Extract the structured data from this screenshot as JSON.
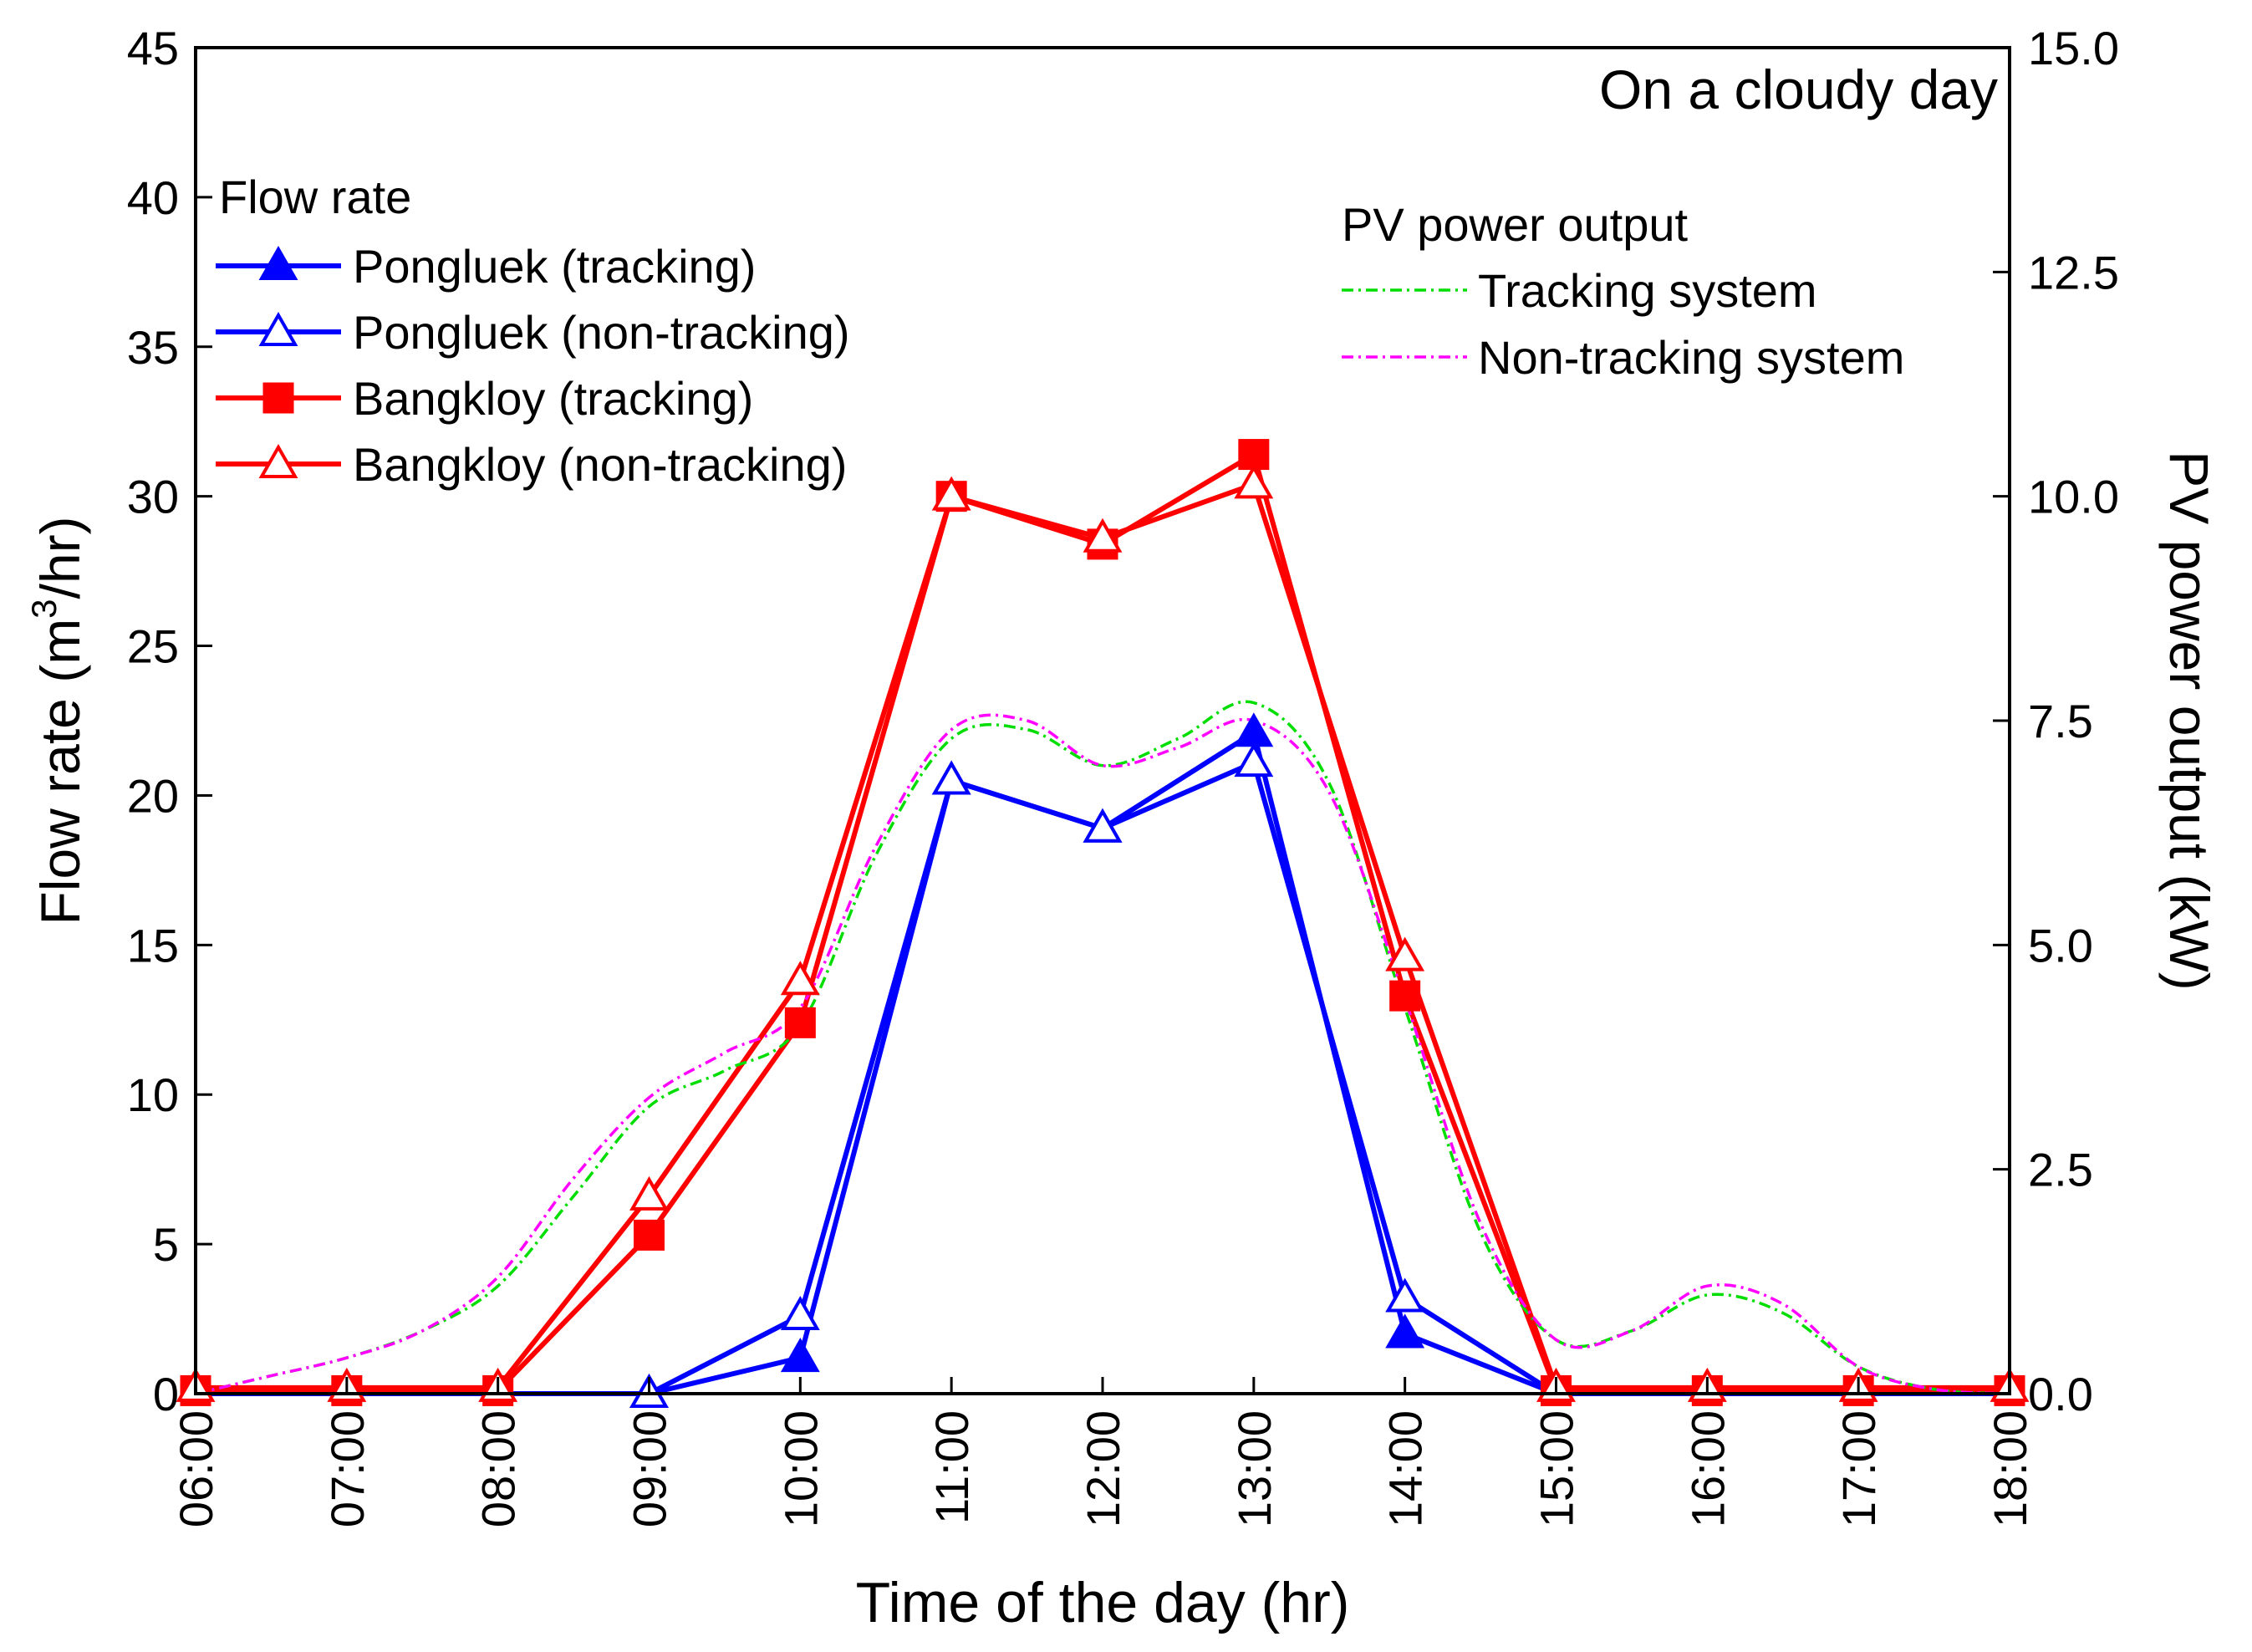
{
  "chart_data": {
    "type": "line",
    "title": "On a cloudy day",
    "xlabel": "Time of the day (hr)",
    "ylabel_left_main": "Flow rate (m",
    "ylabel_left_sup": "3",
    "ylabel_left_tail": "/hr)",
    "ylabel_right": "PV power output (kW)",
    "x_categories": [
      "06:00",
      "07:00",
      "08:00",
      "09:00",
      "10:00",
      "11:00",
      "12:00",
      "13:00",
      "14:00",
      "15:00",
      "16:00",
      "17:00",
      "18:00"
    ],
    "y_left_range": [
      0,
      45
    ],
    "y_left_ticks": [
      "0",
      "5",
      "10",
      "15",
      "20",
      "25",
      "30",
      "35",
      "40",
      "45"
    ],
    "y_right_range": [
      0,
      15
    ],
    "y_right_ticks": [
      "0.0",
      "2.5",
      "5.0",
      "7.5",
      "10.0",
      "12.5",
      "15.0"
    ],
    "legend_left_title": "Flow rate",
    "legend_right_title": "PV power output",
    "flow_series": [
      {
        "name": "Pongluek (tracking)",
        "color": "#0000ff",
        "marker": "triangle-filled",
        "values": [
          0,
          0,
          0,
          0,
          1.2,
          20.5,
          18.9,
          22.1,
          2.0,
          0,
          0,
          0,
          0
        ]
      },
      {
        "name": "Pongluek (non-tracking)",
        "color": "#0000ff",
        "marker": "triangle-open",
        "values": [
          0,
          0,
          0,
          0,
          2.6,
          20.5,
          18.9,
          21.1,
          3.2,
          0,
          0,
          0,
          0
        ]
      },
      {
        "name": "Bangkloy (tracking)",
        "color": "#ff0000",
        "marker": "square-filled",
        "values": [
          0.1,
          0.1,
          0.1,
          5.3,
          12.4,
          30.0,
          28.4,
          31.4,
          13.3,
          0.1,
          0.1,
          0.1,
          0.1
        ]
      },
      {
        "name": "Bangkloy (non-tracking)",
        "color": "#ff0000",
        "marker": "triangle-open",
        "values": [
          0.2,
          0.2,
          0.2,
          6.6,
          13.8,
          30.0,
          28.6,
          30.4,
          14.6,
          0.2,
          0.2,
          0.2,
          0.2
        ]
      }
    ],
    "pv_series": [
      {
        "name": "Tracking system",
        "color": "#00dd00",
        "x": [
          0,
          0.5,
          1,
          1.5,
          2,
          2.5,
          3,
          3.5,
          4,
          4.5,
          5,
          5.5,
          6,
          6.5,
          7,
          7.5,
          8,
          8.5,
          9,
          9.5,
          10,
          10.5,
          11,
          11.5,
          12
        ],
        "values": [
          0,
          0.2,
          0.4,
          0.7,
          1.2,
          2.2,
          3.2,
          3.6,
          4.1,
          6.0,
          7.3,
          7.4,
          7.0,
          7.3,
          7.7,
          6.8,
          4.3,
          1.8,
          0.6,
          0.7,
          1.1,
          0.9,
          0.3,
          0.05,
          0
        ]
      },
      {
        "name": "Non-tracking system",
        "color": "#ff00ff",
        "x": [
          0,
          0.5,
          1,
          1.5,
          2,
          2.5,
          3,
          3.5,
          4,
          4.5,
          5,
          5.5,
          6,
          6.5,
          7,
          7.5,
          8,
          8.5,
          9,
          9.5,
          10,
          10.5,
          11,
          11.5,
          12
        ],
        "values": [
          0,
          0.2,
          0.4,
          0.7,
          1.3,
          2.4,
          3.3,
          3.8,
          4.3,
          6.1,
          7.4,
          7.5,
          7.0,
          7.2,
          7.5,
          6.7,
          4.4,
          1.9,
          0.6,
          0.7,
          1.2,
          1.0,
          0.3,
          0.05,
          0
        ]
      }
    ]
  }
}
